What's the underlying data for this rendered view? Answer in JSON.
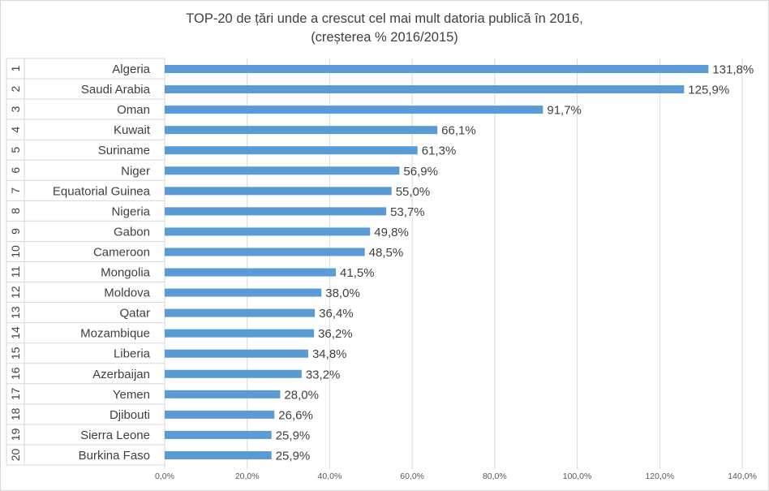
{
  "chart_data": {
    "type": "bar",
    "orientation": "horizontal",
    "title": "TOP-20 de țări unde a crescut cel mai mult datoria publică în 2016,",
    "subtitle": "(creșterea % 2016/2015)",
    "xlabel": "",
    "ylabel": "",
    "xlim": [
      0,
      140
    ],
    "xticks": [
      "0,0%",
      "20,0%",
      "40,0%",
      "60,0%",
      "80,0%",
      "100,0%",
      "120,0%",
      "140,0%"
    ],
    "grid": true,
    "legend": "none",
    "bar_color": "#5b9bd5",
    "ranks": [
      "1",
      "2",
      "3",
      "4",
      "5",
      "6",
      "7",
      "8",
      "9",
      "10",
      "11",
      "12",
      "13",
      "14",
      "15",
      "16",
      "17",
      "18",
      "19",
      "20"
    ],
    "categories": [
      "Algeria",
      "Saudi Arabia",
      "Oman",
      "Kuwait",
      "Suriname",
      "Niger",
      "Equatorial Guinea",
      "Nigeria",
      "Gabon",
      "Cameroon",
      "Mongolia",
      "Moldova",
      "Qatar",
      "Mozambique",
      "Liberia",
      "Azerbaijan",
      "Yemen",
      "Djibouti",
      "Sierra Leone",
      "Burkina Faso"
    ],
    "values": [
      131.8,
      125.9,
      91.7,
      66.1,
      61.3,
      56.9,
      55.0,
      53.7,
      49.8,
      48.5,
      41.5,
      38.0,
      36.4,
      36.2,
      34.8,
      33.2,
      28.0,
      26.6,
      25.9,
      25.9
    ],
    "data_labels": [
      "131,8%",
      "125,9%",
      "91,7%",
      "66,1%",
      "61,3%",
      "56,9%",
      "55,0%",
      "53,7%",
      "49,8%",
      "48,5%",
      "41,5%",
      "38,0%",
      "36,4%",
      "36,2%",
      "34,8%",
      "33,2%",
      "28,0%",
      "26,6%",
      "25,9%",
      "25,9%"
    ]
  }
}
